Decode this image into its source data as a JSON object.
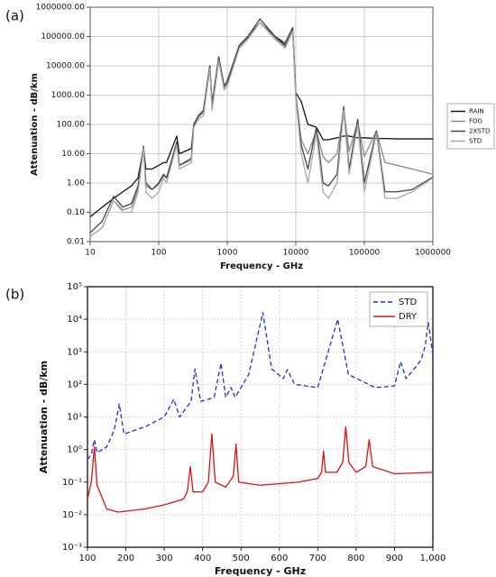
{
  "chart_data": [
    {
      "type": "line",
      "panel": "(a)",
      "xlabel": "Frequency - GHz",
      "ylabel": "Attenuation - dB/km",
      "xscale": "log",
      "yscale": "log",
      "grid": true,
      "legend": "outside right",
      "xlim": [
        10,
        1000000
      ],
      "ylim": [
        0.01,
        1000000
      ],
      "xticks": [
        10,
        100,
        1000,
        10000,
        100000,
        1000000
      ],
      "yticks": [
        {
          "value": 0.01,
          "label": "0.01"
        },
        {
          "value": 0.1,
          "label": "0.10"
        },
        {
          "value": 1,
          "label": "1.00"
        },
        {
          "value": 10,
          "label": "10.00"
        },
        {
          "value": 100,
          "label": "100.00"
        },
        {
          "value": 1000,
          "label": "1000.00"
        },
        {
          "value": 10000,
          "label": "10000.00"
        },
        {
          "value": 100000,
          "label": "100000.00"
        },
        {
          "value": 1000000,
          "label": "1000000.00"
        }
      ],
      "x": [
        10,
        15,
        22,
        30,
        40,
        50,
        60,
        65,
        80,
        100,
        118,
        130,
        183,
        200,
        300,
        325,
        380,
        450,
        557,
        600,
        752,
        900,
        1000,
        1500,
        2000,
        3000,
        5000,
        7000,
        9000,
        10000,
        12000,
        15000,
        20000,
        25000,
        30000,
        40000,
        50000,
        60000,
        80000,
        100000,
        150000,
        200000,
        300000,
        500000,
        1000000
      ],
      "series": [
        {
          "name": "RAIN",
          "color": "#111111",
          "values": [
            0.07,
            0.15,
            0.3,
            0.5,
            0.8,
            1.5,
            15,
            3,
            3,
            4,
            5,
            5,
            40,
            10,
            15,
            100,
            200,
            300,
            10000,
            500,
            20000,
            2000,
            3000,
            50000,
            100000,
            300000,
            100000,
            50000,
            200000,
            1200,
            600,
            100,
            80,
            30,
            30,
            35,
            40,
            40,
            35,
            35,
            33,
            33,
            32,
            32,
            32
          ]
        },
        {
          "name": "FOG",
          "color": "#8a8a8a",
          "values": [
            0.015,
            0.03,
            0.25,
            0.12,
            0.15,
            0.6,
            15,
            0.8,
            0.6,
            0.9,
            1.8,
            1.5,
            20,
            4,
            6,
            90,
            180,
            250,
            9000,
            400,
            18000,
            1800,
            2500,
            45000,
            90000,
            300000,
            90000,
            45000,
            180000,
            1000,
            30,
            10,
            60,
            8,
            5,
            10,
            300,
            12,
            120,
            8,
            60,
            5,
            4,
            3,
            2
          ]
        },
        {
          "name": "2XSTD",
          "color": "#444444",
          "values": [
            0.02,
            0.05,
            0.35,
            0.15,
            0.2,
            0.8,
            18,
            1,
            0.6,
            1,
            2,
            1.5,
            25,
            4,
            7,
            100,
            200,
            300,
            10000,
            400,
            20000,
            2000,
            3000,
            50000,
            100000,
            400000,
            100000,
            60000,
            200000,
            1000,
            20,
            3,
            80,
            1,
            0.8,
            2,
            400,
            3,
            150,
            1,
            60,
            0.5,
            0.5,
            0.6,
            1.6
          ]
        },
        {
          "name": "STD",
          "color": "#a8a8a8",
          "values": [
            0.015,
            0.03,
            0.25,
            0.1,
            0.1,
            0.5,
            15,
            0.5,
            0.3,
            0.5,
            1.5,
            1,
            20,
            3,
            5,
            80,
            150,
            200,
            8000,
            300,
            15000,
            1500,
            2000,
            40000,
            80000,
            300000,
            80000,
            40000,
            150000,
            800,
            10,
            1,
            50,
            0.5,
            0.3,
            1,
            300,
            2,
            100,
            0.5,
            50,
            0.3,
            0.3,
            0.5,
            1.5
          ]
        }
      ]
    },
    {
      "type": "line",
      "panel": "(b)",
      "xlabel": "Frequency - GHz",
      "ylabel": "Attenuation - dB/km",
      "xscale": "linear",
      "yscale": "log",
      "grid": true,
      "legend": "upper right",
      "xlim": [
        100,
        1000
      ],
      "ylim": [
        0.001,
        100000
      ],
      "xticks": [
        100,
        200,
        300,
        400,
        500,
        600,
        700,
        800,
        900,
        {
          "value": 1000,
          "label": "1,000"
        }
      ],
      "yticks": [
        {
          "value": 0.001,
          "label": "10⁻³"
        },
        {
          "value": 0.01,
          "label": "10⁻²"
        },
        {
          "value": 0.1,
          "label": "10⁻¹"
        },
        {
          "value": 1,
          "label": "10⁰"
        },
        {
          "value": 10,
          "label": "10¹"
        },
        {
          "value": 100,
          "label": "10²"
        },
        {
          "value": 1000,
          "label": "10³"
        },
        {
          "value": 10000,
          "label": "10⁴"
        },
        {
          "value": 100000,
          "label": "10⁵"
        }
      ],
      "series": [
        {
          "name": "STD",
          "color": "#1f2fd6",
          "linestyle": "dashed",
          "x": [
            100,
            110,
            118,
            125,
            150,
            170,
            183,
            195,
            250,
            300,
            325,
            340,
            370,
            380,
            395,
            430,
            448,
            460,
            474,
            485,
            520,
            557,
            580,
            610,
            621,
            640,
            700,
            752,
            780,
            850,
            900,
            916,
            930,
            960,
            970,
            980,
            988,
            1000
          ],
          "values": [
            0.5,
            0.7,
            2,
            0.8,
            1.2,
            4,
            25,
            3,
            5,
            10,
            35,
            10,
            30,
            300,
            30,
            40,
            450,
            40,
            80,
            40,
            200,
            16000,
            300,
            150,
            280,
            100,
            80,
            10000,
            200,
            80,
            90,
            500,
            150,
            400,
            600,
            1500,
            8000,
            800
          ]
        },
        {
          "name": "DRY",
          "color": "#e01010",
          "linestyle": "solid",
          "x": [
            100,
            110,
            118,
            125,
            150,
            180,
            250,
            300,
            350,
            360,
            368,
            375,
            400,
            415,
            424,
            433,
            460,
            480,
            487,
            494,
            550,
            650,
            700,
            710,
            715,
            720,
            750,
            765,
            773,
            781,
            800,
            825,
            834,
            843,
            900,
            1000
          ],
          "values": [
            0.03,
            0.1,
            1.2,
            0.08,
            0.015,
            0.012,
            0.015,
            0.02,
            0.03,
            0.05,
            0.3,
            0.05,
            0.05,
            0.1,
            3,
            0.1,
            0.07,
            0.15,
            1.5,
            0.1,
            0.08,
            0.1,
            0.13,
            0.2,
            0.9,
            0.2,
            0.2,
            0.4,
            5,
            0.4,
            0.2,
            0.3,
            2,
            0.3,
            0.18,
            0.2
          ]
        }
      ]
    }
  ]
}
